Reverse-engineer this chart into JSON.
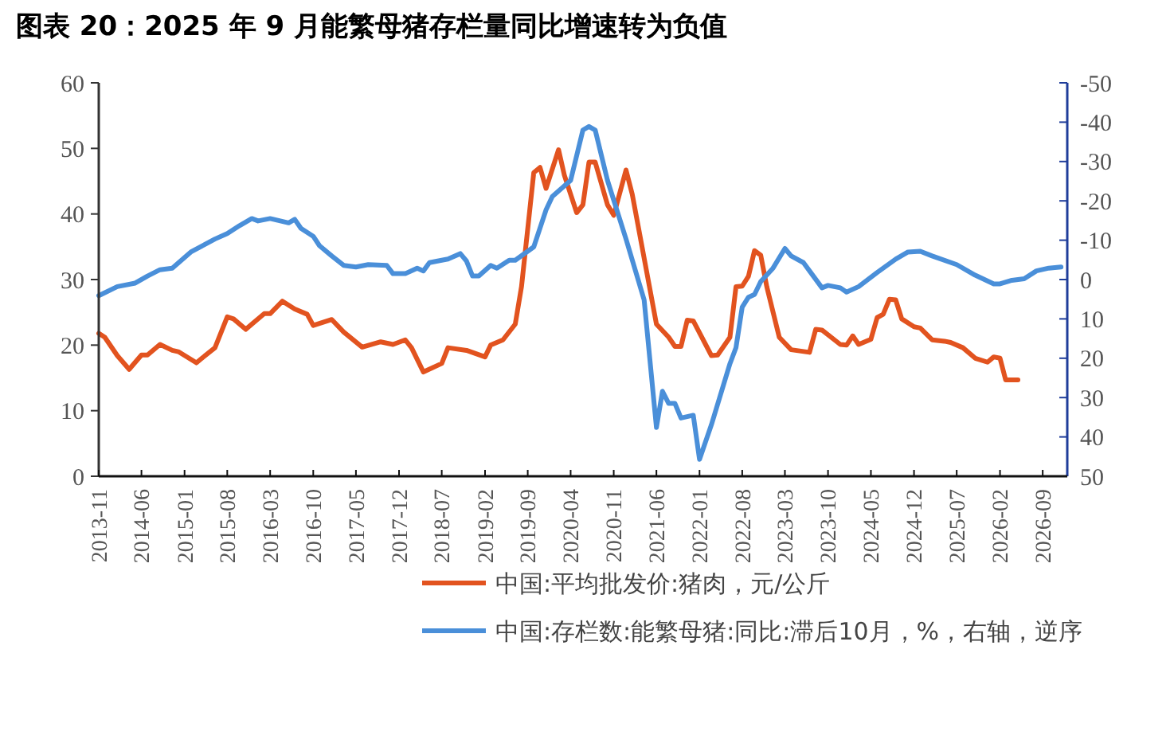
{
  "chart_data": {
    "type": "line",
    "title": "图表 20：2025 年 9 月能繁母猪存栏量同比增速转为负值",
    "xlim": [
      "2013-11",
      "2027-01"
    ],
    "xticks": [
      "2013-11",
      "2014-06",
      "2015-01",
      "2015-08",
      "2016-03",
      "2016-10",
      "2017-05",
      "2017-12",
      "2018-07",
      "2019-02",
      "2019-09",
      "2020-04",
      "2020-11",
      "2021-06",
      "2022-01",
      "2022-08",
      "2023-03",
      "2023-10",
      "2024-05",
      "2024-12",
      "2025-07",
      "2026-02",
      "2026-09"
    ],
    "ylim": [
      0,
      60
    ],
    "yticks": [
      0,
      10,
      20,
      30,
      40,
      50,
      60
    ],
    "y2lim": [
      50,
      -50
    ],
    "y2ticks": [
      -50,
      -40,
      -30,
      -20,
      -10,
      0,
      10,
      20,
      30,
      40,
      50
    ],
    "grid": false,
    "legend": "bottom",
    "marker": "none",
    "line_style": "solid",
    "series": [
      {
        "name": "中国:平均批发价:猪肉，元/公斤",
        "color": "#e2531f",
        "x": [
          "2013-11",
          "2013-12",
          "2014-02",
          "2014-04",
          "2014-06",
          "2014-07",
          "2014-09",
          "2014-11",
          "2014-12",
          "2015-03",
          "2015-04",
          "2015-06",
          "2015-08",
          "2015-09",
          "2015-11",
          "2015-12",
          "2016-02",
          "2016-03",
          "2016-05",
          "2016-07",
          "2016-09",
          "2016-10",
          "2017-01",
          "2017-03",
          "2017-06",
          "2017-09",
          "2017-11",
          "2018-01",
          "2018-02",
          "2018-04",
          "2018-07",
          "2018-08",
          "2018-11",
          "2019-02",
          "2019-03",
          "2019-05",
          "2019-07",
          "2019-08",
          "2019-10",
          "2019-11",
          "2019-12",
          "2020-02",
          "2020-03",
          "2020-05",
          "2020-06",
          "2020-07",
          "2020-08",
          "2020-10",
          "2020-11",
          "2021-01",
          "2021-02",
          "2021-06",
          "2021-08",
          "2021-09",
          "2021-10",
          "2021-11",
          "2021-12",
          "2022-03",
          "2022-04",
          "2022-06",
          "2022-07",
          "2022-08",
          "2022-09",
          "2022-10",
          "2022-11",
          "2022-12",
          "2023-02",
          "2023-04",
          "2023-07",
          "2023-08",
          "2023-09",
          "2023-12",
          "2024-01",
          "2024-02",
          "2024-03",
          "2024-05",
          "2024-06",
          "2024-07",
          "2024-08",
          "2024-09",
          "2024-10",
          "2024-12",
          "2025-01",
          "2025-03",
          "2025-05",
          "2025-06",
          "2025-08",
          "2025-10",
          "2025-12",
          "2026-01",
          "2026-02",
          "2026-03",
          "2026-05"
        ],
        "values": [
          21.8,
          21.2,
          18.4,
          16.3,
          18.5,
          18.5,
          20.1,
          19.2,
          19.0,
          17.3,
          18.1,
          19.6,
          24.3,
          24.0,
          22.4,
          23.2,
          24.8,
          24.8,
          26.7,
          25.5,
          24.7,
          23.0,
          23.9,
          22.0,
          19.7,
          20.5,
          20.1,
          20.8,
          19.6,
          15.9,
          17.2,
          19.6,
          19.2,
          18.2,
          20.0,
          20.8,
          23.2,
          28.9,
          46.3,
          47.1,
          43.9,
          49.8,
          45.9,
          40.2,
          41.4,
          47.9,
          47.9,
          41.4,
          39.8,
          46.7,
          43.0,
          23.2,
          21.2,
          19.8,
          19.8,
          23.8,
          23.7,
          18.4,
          18.5,
          21.2,
          28.9,
          29.0,
          30.5,
          34.4,
          33.7,
          28.9,
          21.2,
          19.3,
          18.9,
          22.4,
          22.3,
          20.1,
          20.0,
          21.4,
          20.1,
          20.9,
          24.2,
          24.7,
          27.0,
          26.9,
          24.0,
          22.8,
          22.6,
          20.8,
          20.6,
          20.4,
          19.6,
          18.0,
          17.4,
          18.2,
          18.0,
          14.7,
          14.7
        ]
      },
      {
        "name": "中国:存栏数:能繁母猪:同比:滞后10月，%，右轴，逆序",
        "color": "#4a8fd9",
        "axis": "y2",
        "x": [
          "2013-11",
          "2014-02",
          "2014-05",
          "2014-07",
          "2014-09",
          "2014-11",
          "2015-02",
          "2015-06",
          "2015-08",
          "2015-10",
          "2015-12",
          "2016-01",
          "2016-03",
          "2016-06",
          "2016-07",
          "2016-08",
          "2016-10",
          "2016-11",
          "2017-01",
          "2017-03",
          "2017-05",
          "2017-07",
          "2017-10",
          "2017-11",
          "2018-01",
          "2018-03",
          "2018-04",
          "2018-05",
          "2018-07",
          "2018-08",
          "2018-10",
          "2018-11",
          "2018-12",
          "2019-01",
          "2019-03",
          "2019-04",
          "2019-06",
          "2019-07",
          "2019-10",
          "2019-12",
          "2020-01",
          "2020-04",
          "2020-06",
          "2020-07",
          "2020-08",
          "2020-10",
          "2021-01",
          "2021-04",
          "2021-06",
          "2021-07",
          "2021-08",
          "2021-09",
          "2021-10",
          "2021-12",
          "2022-01",
          "2022-03",
          "2022-06",
          "2022-07",
          "2022-08",
          "2022-09",
          "2022-10",
          "2022-11",
          "2023-01",
          "2023-03",
          "2023-04",
          "2023-06",
          "2023-09",
          "2023-10",
          "2023-12",
          "2024-01",
          "2024-03",
          "2024-06",
          "2024-09",
          "2024-11",
          "2025-01",
          "2025-03",
          "2025-07",
          "2025-10",
          "2026-01",
          "2026-02",
          "2026-04",
          "2026-06",
          "2026-08",
          "2026-10",
          "2026-12"
        ],
        "values": [
          4.1,
          1.8,
          0.9,
          -0.9,
          -2.5,
          -2.9,
          -7.0,
          -10.3,
          -11.7,
          -13.7,
          -15.5,
          -14.9,
          -15.5,
          -14.4,
          -15.3,
          -13.0,
          -11.0,
          -8.6,
          -6.0,
          -3.6,
          -3.2,
          -3.8,
          -3.6,
          -1.5,
          -1.5,
          -2.9,
          -2.2,
          -4.3,
          -4.9,
          -5.2,
          -6.6,
          -4.7,
          -0.9,
          -0.9,
          -3.6,
          -2.9,
          -4.9,
          -4.9,
          -8.3,
          -17.7,
          -21.1,
          -25.2,
          -38.0,
          -38.9,
          -38.0,
          -25.2,
          -10.3,
          5.2,
          37.6,
          28.4,
          31.5,
          31.5,
          35.2,
          34.5,
          45.7,
          36.9,
          21.4,
          17.3,
          7.0,
          4.5,
          3.8,
          0.5,
          -2.9,
          -7.9,
          -6.0,
          -4.3,
          2.1,
          1.5,
          2.1,
          3.2,
          1.8,
          -1.8,
          -5.2,
          -7.0,
          -7.2,
          -6.0,
          -3.8,
          -1.1,
          1.1,
          1.1,
          0.2,
          -0.2,
          -2.2,
          -2.9,
          -3.2
        ]
      }
    ]
  }
}
